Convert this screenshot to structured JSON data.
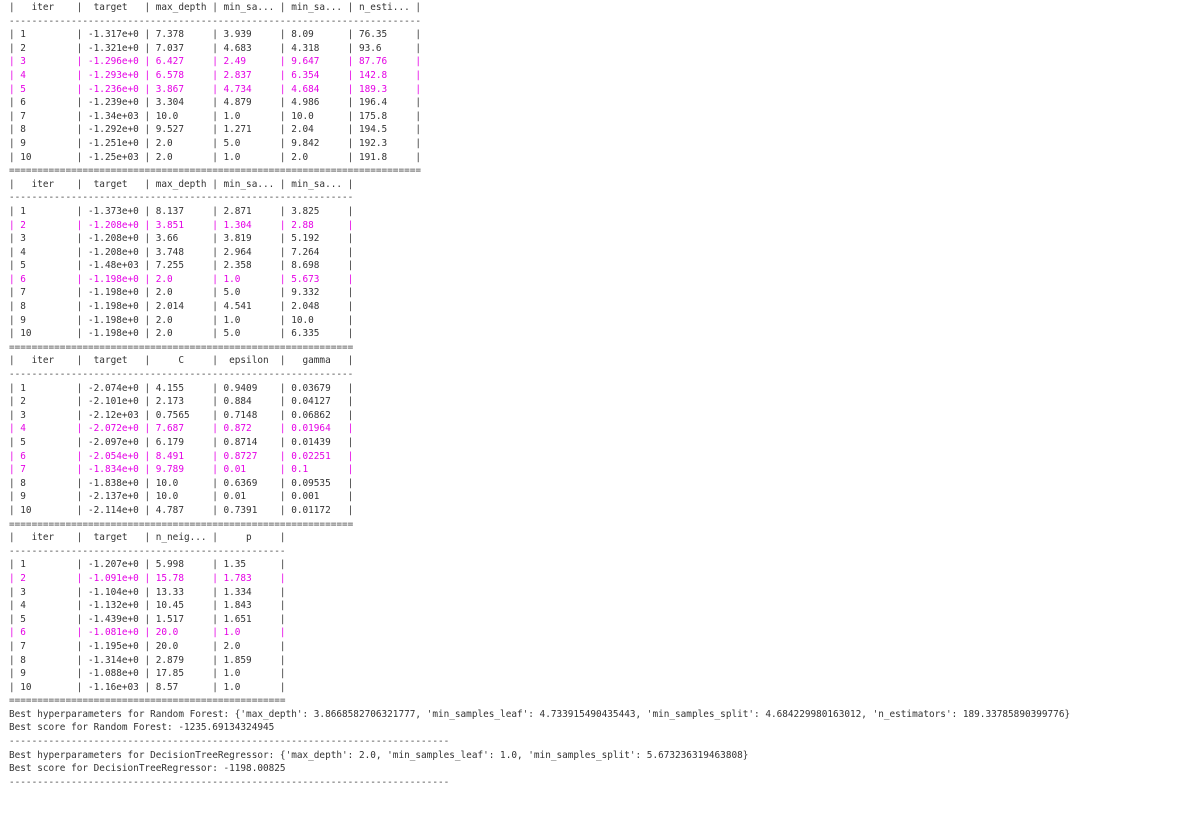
{
  "colors": {
    "text": "#333333",
    "highlight": "#e500e5",
    "background": "#ffffff"
  },
  "output_lines": [
    {
      "text": "|   iter    |  target   | max_depth | min_sa... | min_sa... | n_esti... |",
      "kind": "header"
    },
    {
      "text": "-------------------------------------------------------------------------",
      "kind": "rule"
    },
    {
      "text": "| 1         | -1.317e+0 | 7.378     | 3.939     | 8.09      | 76.35     |",
      "kind": "row"
    },
    {
      "text": "| 2         | -1.321e+0 | 7.037     | 4.683     | 4.318     | 93.6      |",
      "kind": "row"
    },
    {
      "text": "| 3         | -1.296e+0 | 6.427     | 2.49      | 9.647     | 87.76     |",
      "kind": "highlight"
    },
    {
      "text": "| 4         | -1.293e+0 | 6.578     | 2.837     | 6.354     | 142.8     |",
      "kind": "highlight"
    },
    {
      "text": "| 5         | -1.236e+0 | 3.867     | 4.734     | 4.684     | 189.3     |",
      "kind": "highlight"
    },
    {
      "text": "| 6         | -1.239e+0 | 3.304     | 4.879     | 4.986     | 196.4     |",
      "kind": "row"
    },
    {
      "text": "| 7         | -1.34e+03 | 10.0      | 1.0       | 10.0      | 175.8     |",
      "kind": "row"
    },
    {
      "text": "| 8         | -1.292e+0 | 9.527     | 1.271     | 2.04      | 194.5     |",
      "kind": "row"
    },
    {
      "text": "| 9         | -1.251e+0 | 2.0       | 5.0       | 9.842     | 192.3     |",
      "kind": "row"
    },
    {
      "text": "| 10        | -1.25e+03 | 2.0       | 1.0       | 2.0       | 191.8     |",
      "kind": "row"
    },
    {
      "text": "=========================================================================",
      "kind": "rule"
    },
    {
      "text": "|   iter    |  target   | max_depth | min_sa... | min_sa... |",
      "kind": "header"
    },
    {
      "text": "-------------------------------------------------------------",
      "kind": "rule"
    },
    {
      "text": "| 1         | -1.373e+0 | 8.137     | 2.871     | 3.825     |",
      "kind": "row"
    },
    {
      "text": "| 2         | -1.208e+0 | 3.851     | 1.304     | 2.88      |",
      "kind": "highlight"
    },
    {
      "text": "| 3         | -1.208e+0 | 3.66      | 3.819     | 5.192     |",
      "kind": "row"
    },
    {
      "text": "| 4         | -1.208e+0 | 3.748     | 2.964     | 7.264     |",
      "kind": "row"
    },
    {
      "text": "| 5         | -1.48e+03 | 7.255     | 2.358     | 8.698     |",
      "kind": "row"
    },
    {
      "text": "| 6         | -1.198e+0 | 2.0       | 1.0       | 5.673     |",
      "kind": "highlight"
    },
    {
      "text": "| 7         | -1.198e+0 | 2.0       | 5.0       | 9.332     |",
      "kind": "row"
    },
    {
      "text": "| 8         | -1.198e+0 | 2.014     | 4.541     | 2.048     |",
      "kind": "row"
    },
    {
      "text": "| 9         | -1.198e+0 | 2.0       | 1.0       | 10.0      |",
      "kind": "row"
    },
    {
      "text": "| 10        | -1.198e+0 | 2.0       | 5.0       | 6.335     |",
      "kind": "row"
    },
    {
      "text": "=============================================================",
      "kind": "rule"
    },
    {
      "text": "|   iter    |  target   |     C     |  epsilon  |   gamma   |",
      "kind": "header"
    },
    {
      "text": "-------------------------------------------------------------",
      "kind": "rule"
    },
    {
      "text": "| 1         | -2.074e+0 | 4.155     | 0.9409    | 0.03679   |",
      "kind": "row"
    },
    {
      "text": "| 2         | -2.101e+0 | 2.173     | 0.884     | 0.04127   |",
      "kind": "row"
    },
    {
      "text": "| 3         | -2.12e+03 | 0.7565    | 0.7148    | 0.06862   |",
      "kind": "row"
    },
    {
      "text": "| 4         | -2.072e+0 | 7.687     | 0.872     | 0.01964   |",
      "kind": "highlight"
    },
    {
      "text": "| 5         | -2.097e+0 | 6.179     | 0.8714    | 0.01439   |",
      "kind": "row"
    },
    {
      "text": "| 6         | -2.054e+0 | 8.491     | 0.8727    | 0.02251   |",
      "kind": "highlight"
    },
    {
      "text": "| 7         | -1.834e+0 | 9.789     | 0.01      | 0.1       |",
      "kind": "highlight"
    },
    {
      "text": "| 8         | -1.838e+0 | 10.0      | 0.6369    | 0.09535   |",
      "kind": "row"
    },
    {
      "text": "| 9         | -2.137e+0 | 10.0      | 0.01      | 0.001     |",
      "kind": "row"
    },
    {
      "text": "| 10        | -2.114e+0 | 4.787     | 0.7391    | 0.01172   |",
      "kind": "row"
    },
    {
      "text": "=============================================================",
      "kind": "rule"
    },
    {
      "text": "|   iter    |  target   | n_neig... |     p     |",
      "kind": "header"
    },
    {
      "text": "-------------------------------------------------",
      "kind": "rule"
    },
    {
      "text": "| 1         | -1.207e+0 | 5.998     | 1.35      |",
      "kind": "row"
    },
    {
      "text": "| 2         | -1.091e+0 | 15.78     | 1.783     |",
      "kind": "highlight"
    },
    {
      "text": "| 3         | -1.104e+0 | 13.33     | 1.334     |",
      "kind": "row"
    },
    {
      "text": "| 4         | -1.132e+0 | 10.45     | 1.843     |",
      "kind": "row"
    },
    {
      "text": "| 5         | -1.439e+0 | 1.517     | 1.651     |",
      "kind": "row"
    },
    {
      "text": "| 6         | -1.081e+0 | 20.0      | 1.0       |",
      "kind": "highlight"
    },
    {
      "text": "| 7         | -1.195e+0 | 20.0      | 2.0       |",
      "kind": "row"
    },
    {
      "text": "| 8         | -1.314e+0 | 2.879     | 1.859     |",
      "kind": "row"
    },
    {
      "text": "| 9         | -1.088e+0 | 17.85     | 1.0       |",
      "kind": "row"
    },
    {
      "text": "| 10        | -1.16e+03 | 8.57      | 1.0       |",
      "kind": "row"
    },
    {
      "text": "=================================================",
      "kind": "rule"
    },
    {
      "text": "Best hyperparameters for Random Forest: {'max_depth': 3.8668582706321777, 'min_samples_leaf': 4.733915490435443, 'min_samples_split': 4.684229980163012, 'n_estimators': 189.33785890399776}",
      "kind": "text"
    },
    {
      "text": "Best score for Random Forest: -1235.69134324945",
      "kind": "text"
    },
    {
      "text": "------------------------------------------------------------------------------",
      "kind": "rule"
    },
    {
      "text": "Best hyperparameters for DecisionTreeRegressor: {'max_depth': 2.0, 'min_samples_leaf': 1.0, 'min_samples_split': 5.673236319463808}",
      "kind": "text"
    },
    {
      "text": "Best score for DecisionTreeRegressor: -1198.00825",
      "kind": "text"
    },
    {
      "text": "------------------------------------------------------------------------------",
      "kind": "rule"
    }
  ]
}
